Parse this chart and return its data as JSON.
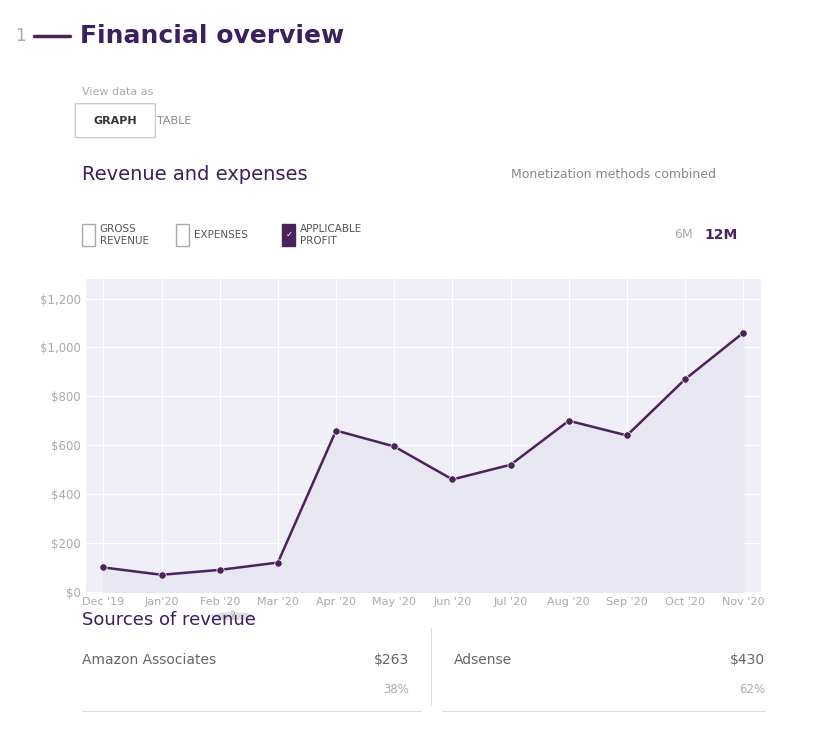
{
  "title": "Financial overview",
  "title_number": "1",
  "section_revenue_title": "Revenue and expenses",
  "monetization_label": "Monetization methods combined",
  "view_data_label": "View data as",
  "graph_btn": "GRAPH",
  "table_btn": "TABLE",
  "legend_items": [
    "GROSS\nREVENUE",
    "EXPENSES",
    "APPLICABLE\nPROFIT"
  ],
  "time_buttons": [
    "6M",
    "12M"
  ],
  "x_labels": [
    "Dec '19",
    "Jan'20",
    "Feb '20",
    "Mar '20",
    "Apr '20",
    "May '20",
    "Jun '20",
    "Jul '20",
    "Aug '20",
    "Sep '20",
    "Oct '20",
    "Nov '20"
  ],
  "y_values": [
    100,
    70,
    90,
    120,
    660,
    595,
    460,
    520,
    700,
    640,
    870,
    1060
  ],
  "y_ticks": [
    0,
    200,
    400,
    600,
    800,
    1000,
    1200
  ],
  "y_tick_labels": [
    "$0",
    "$200",
    "$400",
    "$600",
    "$800",
    "$1,000",
    "$1,200"
  ],
  "ylim": [
    0,
    1280
  ],
  "line_color": "#4a235a",
  "fill_color": "#e8e6f0",
  "marker_color": "#4a235a",
  "bg_color": "#ffffff",
  "plot_bg_color": "#f0eef7",
  "grid_color": "#ffffff",
  "title_color": "#3b1f5e",
  "section_color": "#3b1f5e",
  "axis_label_color": "#aaaaaa",
  "sources_title": "Sources of revenue",
  "source1_name": "Amazon Associates",
  "source1_value": "$263",
  "source1_pct": "38%",
  "source2_name": "Adsense",
  "source2_value": "$430",
  "source2_pct": "62%"
}
